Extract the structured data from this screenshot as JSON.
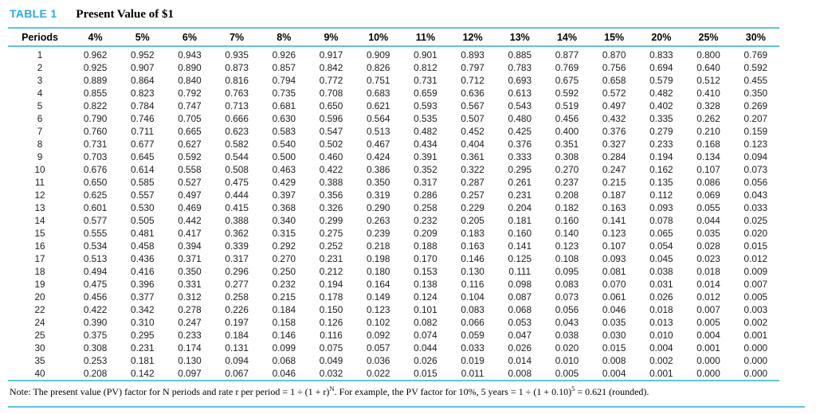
{
  "header": {
    "table_label": "TABLE 1",
    "table_title": "Present Value of $1"
  },
  "table": {
    "columns": [
      "Periods",
      "4%",
      "5%",
      "6%",
      "7%",
      "8%",
      "9%",
      "10%",
      "11%",
      "12%",
      "13%",
      "14%",
      "15%",
      "20%",
      "25%",
      "30%"
    ],
    "rows": [
      [
        "1",
        "0.962",
        "0.952",
        "0.943",
        "0.935",
        "0.926",
        "0.917",
        "0.909",
        "0.901",
        "0.893",
        "0.885",
        "0.877",
        "0.870",
        "0.833",
        "0.800",
        "0.769"
      ],
      [
        "2",
        "0.925",
        "0.907",
        "0.890",
        "0.873",
        "0.857",
        "0.842",
        "0.826",
        "0.812",
        "0.797",
        "0.783",
        "0.769",
        "0.756",
        "0.694",
        "0.640",
        "0.592"
      ],
      [
        "3",
        "0.889",
        "0.864",
        "0.840",
        "0.816",
        "0.794",
        "0.772",
        "0.751",
        "0.731",
        "0.712",
        "0.693",
        "0.675",
        "0.658",
        "0.579",
        "0.512",
        "0.455"
      ],
      [
        "4",
        "0.855",
        "0.823",
        "0.792",
        "0.763",
        "0.735",
        "0.708",
        "0.683",
        "0.659",
        "0.636",
        "0.613",
        "0.592",
        "0.572",
        "0.482",
        "0.410",
        "0.350"
      ],
      [
        "5",
        "0.822",
        "0.784",
        "0.747",
        "0.713",
        "0.681",
        "0.650",
        "0.621",
        "0.593",
        "0.567",
        "0.543",
        "0.519",
        "0.497",
        "0.402",
        "0.328",
        "0.269"
      ],
      [
        "6",
        "0.790",
        "0.746",
        "0.705",
        "0.666",
        "0.630",
        "0.596",
        "0.564",
        "0.535",
        "0.507",
        "0.480",
        "0.456",
        "0.432",
        "0.335",
        "0.262",
        "0.207"
      ],
      [
        "7",
        "0.760",
        "0.711",
        "0.665",
        "0.623",
        "0.583",
        "0.547",
        "0.513",
        "0.482",
        "0.452",
        "0.425",
        "0.400",
        "0.376",
        "0.279",
        "0.210",
        "0.159"
      ],
      [
        "8",
        "0.731",
        "0.677",
        "0.627",
        "0.582",
        "0.540",
        "0.502",
        "0.467",
        "0.434",
        "0.404",
        "0.376",
        "0.351",
        "0.327",
        "0.233",
        "0.168",
        "0.123"
      ],
      [
        "9",
        "0.703",
        "0.645",
        "0.592",
        "0.544",
        "0.500",
        "0.460",
        "0.424",
        "0.391",
        "0.361",
        "0.333",
        "0.308",
        "0.284",
        "0.194",
        "0.134",
        "0.094"
      ],
      [
        "10",
        "0.676",
        "0.614",
        "0.558",
        "0.508",
        "0.463",
        "0.422",
        "0.386",
        "0.352",
        "0.322",
        "0.295",
        "0.270",
        "0.247",
        "0.162",
        "0.107",
        "0.073"
      ],
      [
        "11",
        "0.650",
        "0.585",
        "0.527",
        "0.475",
        "0.429",
        "0.388",
        "0.350",
        "0.317",
        "0.287",
        "0.261",
        "0.237",
        "0.215",
        "0.135",
        "0.086",
        "0.056"
      ],
      [
        "12",
        "0.625",
        "0.557",
        "0.497",
        "0.444",
        "0.397",
        "0.356",
        "0.319",
        "0.286",
        "0.257",
        "0.231",
        "0.208",
        "0.187",
        "0.112",
        "0.069",
        "0.043"
      ],
      [
        "13",
        "0.601",
        "0.530",
        "0.469",
        "0.415",
        "0.368",
        "0.326",
        "0.290",
        "0.258",
        "0.229",
        "0.204",
        "0.182",
        "0.163",
        "0.093",
        "0.055",
        "0.033"
      ],
      [
        "14",
        "0.577",
        "0.505",
        "0.442",
        "0.388",
        "0.340",
        "0.299",
        "0.263",
        "0.232",
        "0.205",
        "0.181",
        "0.160",
        "0.141",
        "0.078",
        "0.044",
        "0.025"
      ],
      [
        "15",
        "0.555",
        "0.481",
        "0.417",
        "0.362",
        "0.315",
        "0.275",
        "0.239",
        "0.209",
        "0.183",
        "0.160",
        "0.140",
        "0.123",
        "0.065",
        "0.035",
        "0.020"
      ],
      [
        "16",
        "0.534",
        "0.458",
        "0.394",
        "0.339",
        "0.292",
        "0.252",
        "0.218",
        "0.188",
        "0.163",
        "0.141",
        "0.123",
        "0.107",
        "0.054",
        "0.028",
        "0.015"
      ],
      [
        "17",
        "0.513",
        "0.436",
        "0.371",
        "0.317",
        "0.270",
        "0.231",
        "0.198",
        "0.170",
        "0.146",
        "0.125",
        "0.108",
        "0.093",
        "0.045",
        "0.023",
        "0.012"
      ],
      [
        "18",
        "0.494",
        "0.416",
        "0.350",
        "0.296",
        "0.250",
        "0.212",
        "0.180",
        "0.153",
        "0.130",
        "0.111",
        "0.095",
        "0.081",
        "0.038",
        "0.018",
        "0.009"
      ],
      [
        "19",
        "0.475",
        "0.396",
        "0.331",
        "0.277",
        "0.232",
        "0.194",
        "0.164",
        "0.138",
        "0.116",
        "0.098",
        "0.083",
        "0.070",
        "0.031",
        "0.014",
        "0.007"
      ],
      [
        "20",
        "0.456",
        "0.377",
        "0.312",
        "0.258",
        "0.215",
        "0.178",
        "0.149",
        "0.124",
        "0.104",
        "0.087",
        "0.073",
        "0.061",
        "0.026",
        "0.012",
        "0.005"
      ],
      [
        "22",
        "0.422",
        "0.342",
        "0.278",
        "0.226",
        "0.184",
        "0.150",
        "0.123",
        "0.101",
        "0.083",
        "0.068",
        "0.056",
        "0.046",
        "0.018",
        "0.007",
        "0.003"
      ],
      [
        "24",
        "0.390",
        "0.310",
        "0.247",
        "0.197",
        "0.158",
        "0.126",
        "0.102",
        "0.082",
        "0.066",
        "0.053",
        "0.043",
        "0.035",
        "0.013",
        "0.005",
        "0.002"
      ],
      [
        "25",
        "0.375",
        "0.295",
        "0.233",
        "0.184",
        "0.146",
        "0.116",
        "0.092",
        "0.074",
        "0.059",
        "0.047",
        "0.038",
        "0.030",
        "0.010",
        "0.004",
        "0.001"
      ],
      [
        "30",
        "0.308",
        "0.231",
        "0.174",
        "0.131",
        "0.099",
        "0.075",
        "0.057",
        "0.044",
        "0.033",
        "0.026",
        "0.020",
        "0.015",
        "0.004",
        "0.001",
        "0.000"
      ],
      [
        "35",
        "0.253",
        "0.181",
        "0.130",
        "0.094",
        "0.068",
        "0.049",
        "0.036",
        "0.026",
        "0.019",
        "0.014",
        "0.010",
        "0.008",
        "0.002",
        "0.000",
        "0.000"
      ],
      [
        "40",
        "0.208",
        "0.142",
        "0.097",
        "0.067",
        "0.046",
        "0.032",
        "0.022",
        "0.015",
        "0.011",
        "0.008",
        "0.005",
        "0.004",
        "0.001",
        "0.000",
        "0.000"
      ]
    ]
  },
  "note": {
    "part1": "Note: The present value (PV) factor for N periods and rate r per period = 1 ÷ (1 + r)",
    "sup1": "N",
    "part2": ". For example, the PV factor for 10%, 5 years = 1 ÷ (1 + 0.10)",
    "sup2": "5",
    "part3": " = 0.621 (rounded)."
  },
  "colors": {
    "accent": "#29abe2",
    "rule": "#5cc6dd"
  }
}
